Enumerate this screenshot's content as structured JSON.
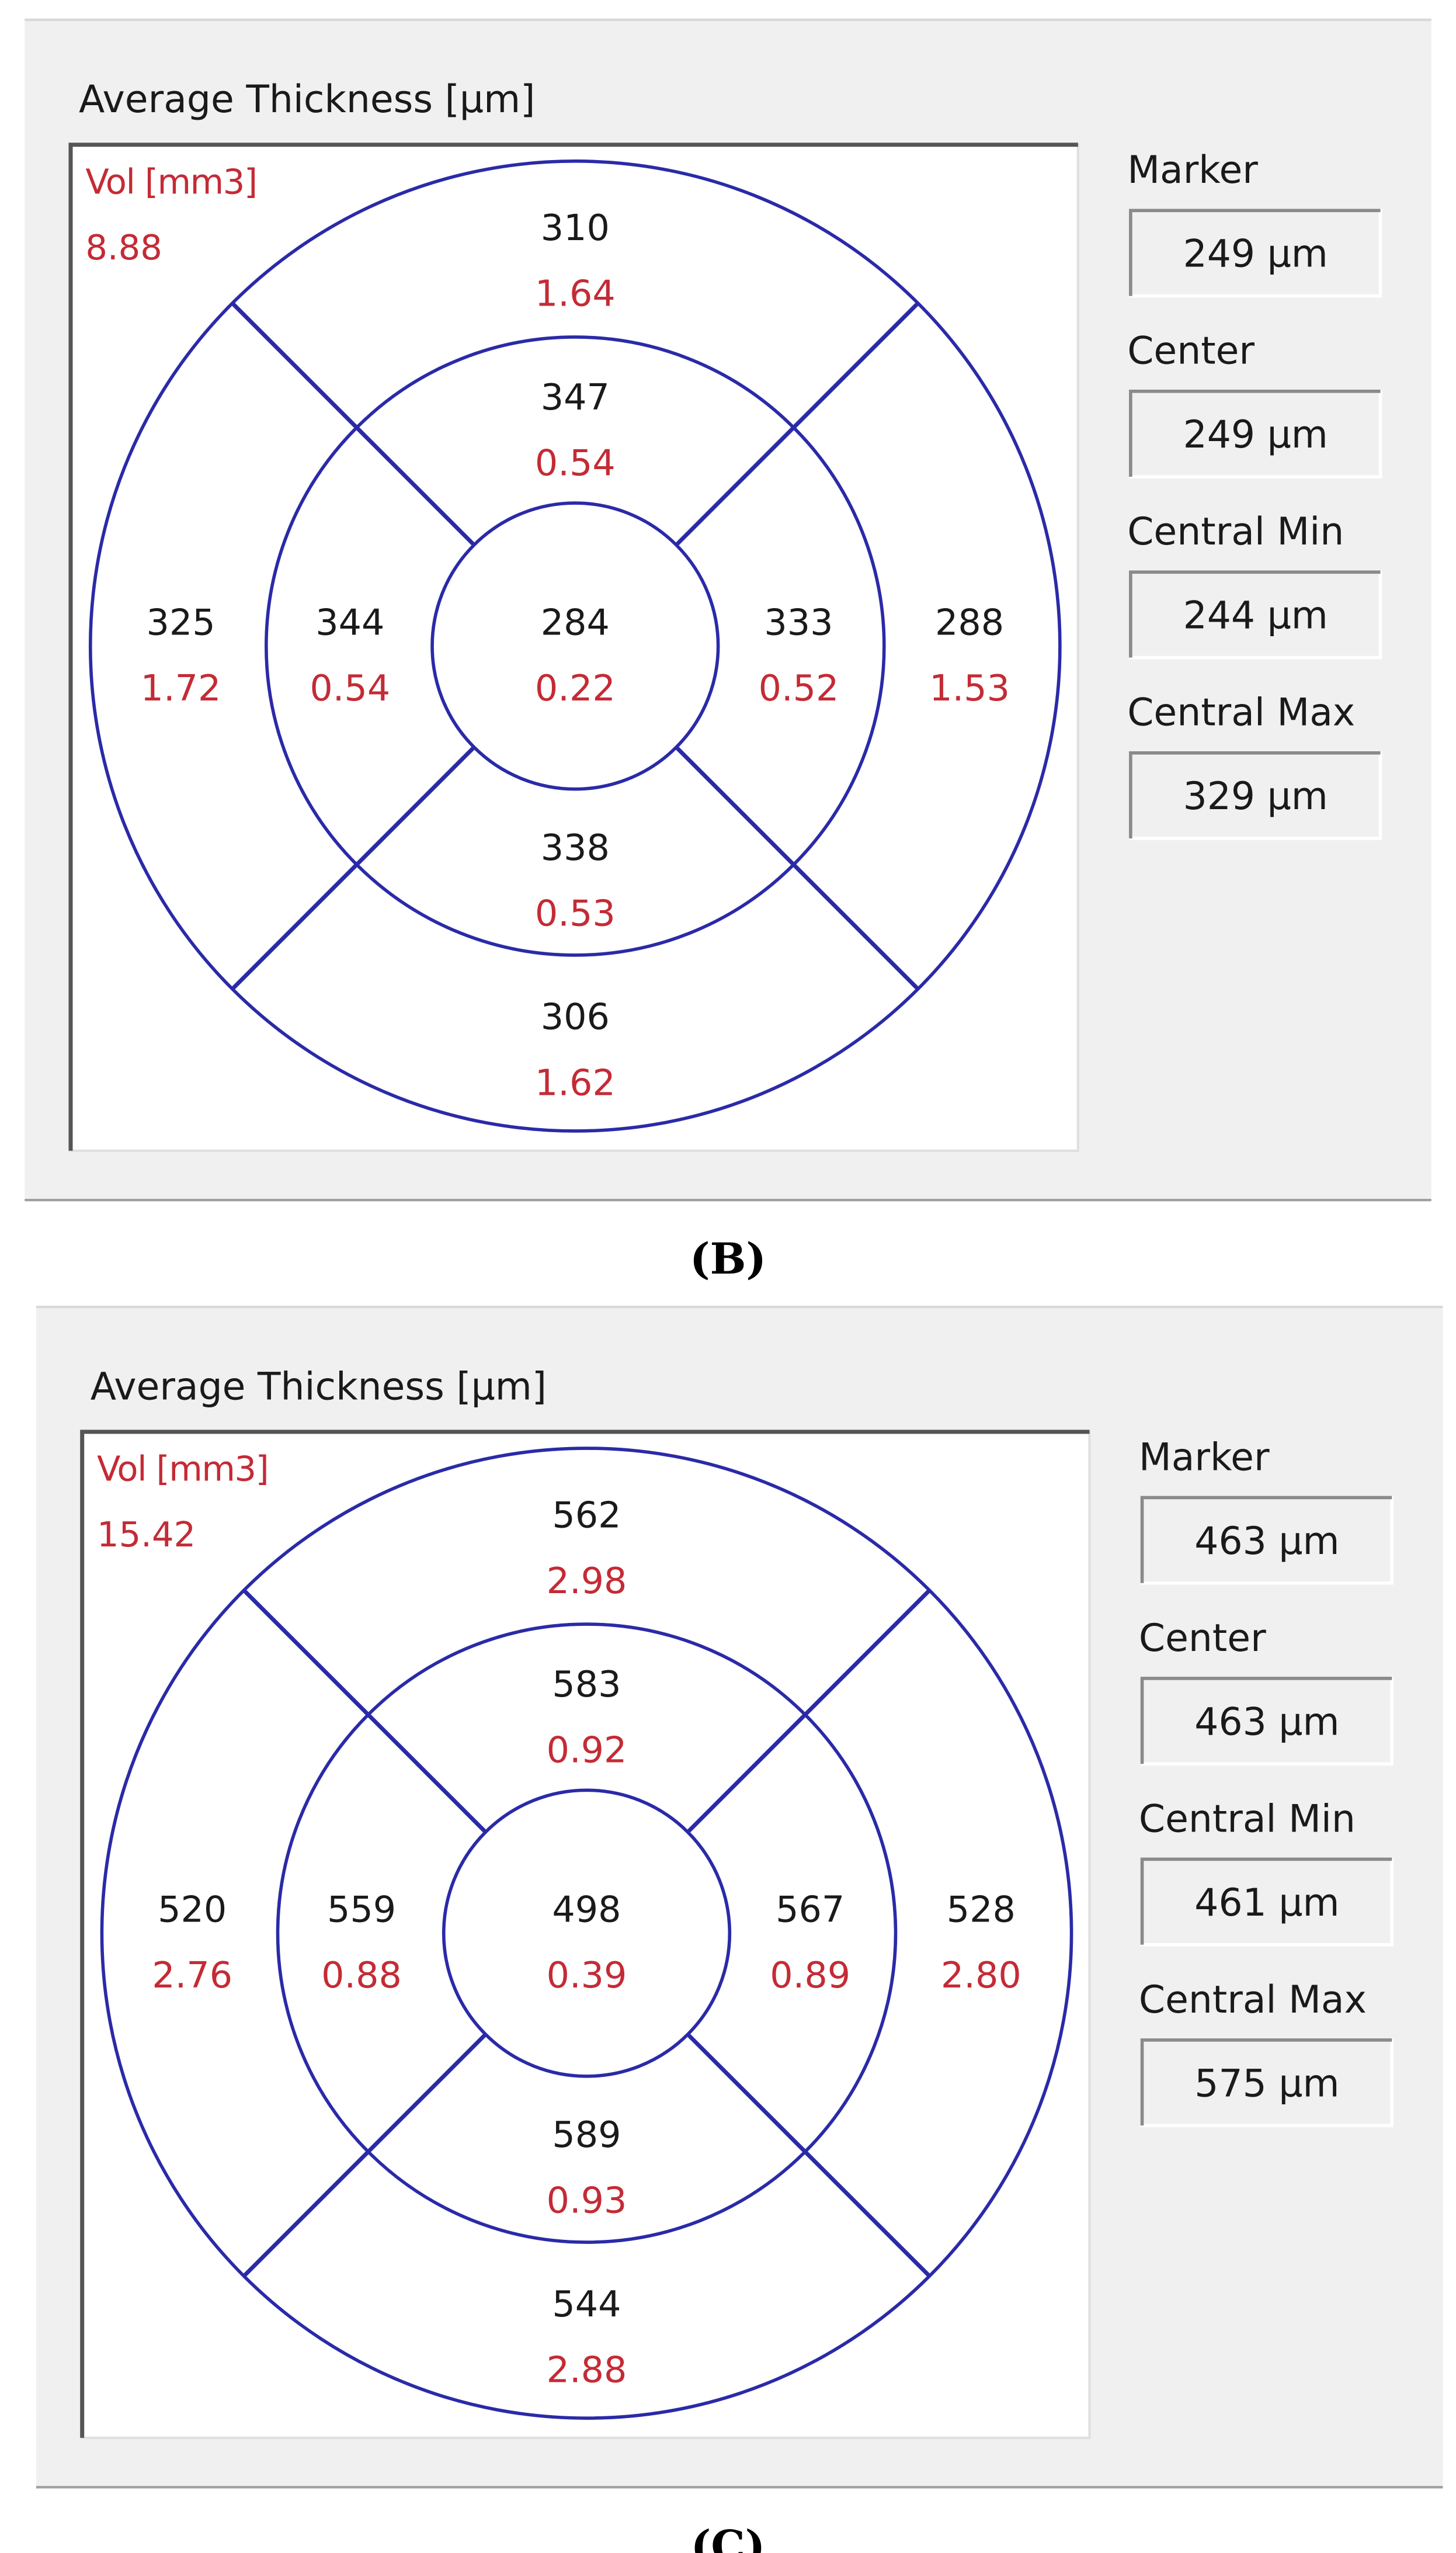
{
  "panels": [
    {
      "title": "Average Thickness [µm]",
      "volume_label": "Vol [mm3]",
      "volume_total": "8.88",
      "sectors": [
        {
          "thickness": "310",
          "volume": "1.64"
        },
        {
          "thickness": "347",
          "volume": "0.54"
        },
        {
          "thickness": "325",
          "volume": "1.72"
        },
        {
          "thickness": "344",
          "volume": "0.54"
        },
        {
          "thickness": "284",
          "volume": "0.22"
        },
        {
          "thickness": "333",
          "volume": "0.52"
        },
        {
          "thickness": "288",
          "volume": "1.53"
        },
        {
          "thickness": "338",
          "volume": "0.53"
        },
        {
          "thickness": "306",
          "volume": "1.62"
        }
      ],
      "fields": [
        {
          "label": "Marker",
          "value": "249 µm"
        },
        {
          "label": "Center",
          "value": "249 µm"
        },
        {
          "label": "Central Min",
          "value": "244 µm"
        },
        {
          "label": "Central Max",
          "value": "329 µm"
        }
      ],
      "caption": "(B)"
    },
    {
      "title": "Average Thickness [µm]",
      "volume_label": "Vol [mm3]",
      "volume_total": "15.42",
      "sectors": [
        {
          "thickness": "562",
          "volume": "2.98"
        },
        {
          "thickness": "583",
          "volume": "0.92"
        },
        {
          "thickness": "520",
          "volume": "2.76"
        },
        {
          "thickness": "559",
          "volume": "0.88"
        },
        {
          "thickness": "498",
          "volume": "0.39"
        },
        {
          "thickness": "567",
          "volume": "0.89"
        },
        {
          "thickness": "528",
          "volume": "2.80"
        },
        {
          "thickness": "589",
          "volume": "0.93"
        },
        {
          "thickness": "544",
          "volume": "2.88"
        }
      ],
      "fields": [
        {
          "label": "Marker",
          "value": "463 µm"
        },
        {
          "label": "Center",
          "value": "463 µm"
        },
        {
          "label": "Central Min",
          "value": "461 µm"
        },
        {
          "label": "Central Max",
          "value": "575 µm"
        }
      ],
      "caption": "(C)"
    }
  ]
}
